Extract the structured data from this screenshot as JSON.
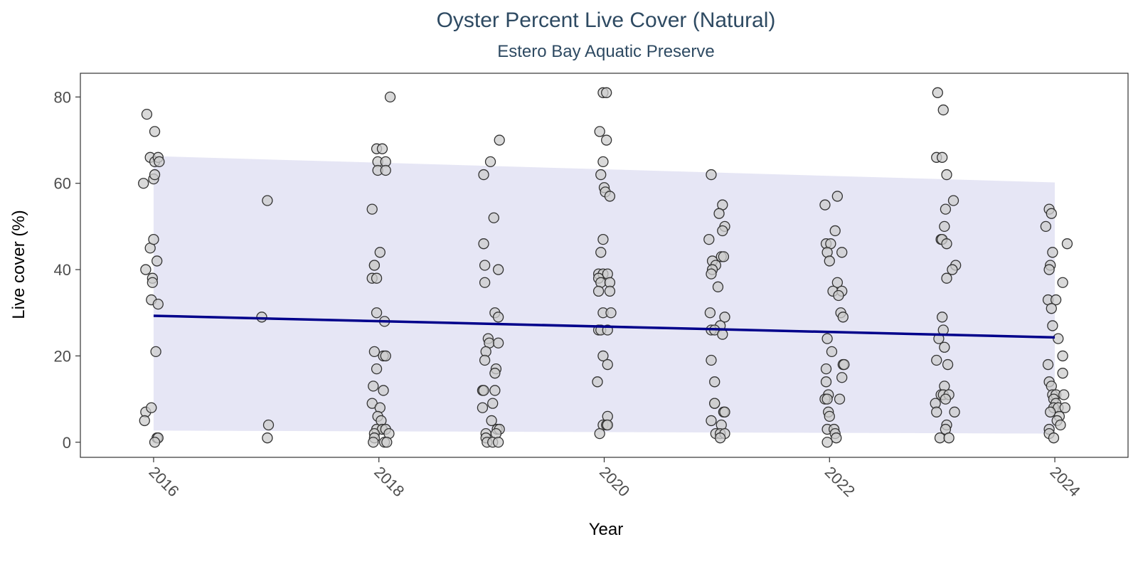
{
  "chart_data": {
    "type": "scatter",
    "title": "Oyster Percent Live Cover (Natural)",
    "subtitle": "Estero Bay Aquatic Preserve",
    "xlabel": "Year",
    "ylabel": "Live cover (%)",
    "xlim": [
      2015.35,
      2024.65
    ],
    "ylim": [
      -3.5,
      85.5
    ],
    "x_ticks": [
      2016,
      2018,
      2020,
      2022,
      2024
    ],
    "y_ticks": [
      0,
      20,
      40,
      60,
      80
    ],
    "grid": false,
    "legend": "none",
    "colors": {
      "point_fill": "#cccccc",
      "point_stroke": "#333333",
      "trend_line": "#00008b",
      "ribbon": "#e6e6f5",
      "panel_border": "#333333",
      "title": "#2e4a62"
    },
    "trend": {
      "x": [
        2016,
        2024
      ],
      "y": [
        29.3,
        24.3
      ],
      "ribbon_lower": [
        2.7,
        2.0
      ],
      "ribbon_upper": [
        66.3,
        60.2
      ]
    },
    "points": [
      {
        "x": 2015.94,
        "y": 76
      },
      {
        "x": 2015.97,
        "y": 66
      },
      {
        "x": 2016.01,
        "y": 65
      },
      {
        "x": 2016.04,
        "y": 66
      },
      {
        "x": 2016.05,
        "y": 65
      },
      {
        "x": 2016.01,
        "y": 72
      },
      {
        "x": 2015.91,
        "y": 60
      },
      {
        "x": 2016.0,
        "y": 61
      },
      {
        "x": 2016.01,
        "y": 62
      },
      {
        "x": 2015.97,
        "y": 45
      },
      {
        "x": 2016.0,
        "y": 47
      },
      {
        "x": 2016.03,
        "y": 42
      },
      {
        "x": 2015.93,
        "y": 40
      },
      {
        "x": 2015.99,
        "y": 38
      },
      {
        "x": 2015.99,
        "y": 37
      },
      {
        "x": 2015.98,
        "y": 33
      },
      {
        "x": 2016.04,
        "y": 32
      },
      {
        "x": 2016.02,
        "y": 21
      },
      {
        "x": 2015.93,
        "y": 7
      },
      {
        "x": 2015.98,
        "y": 8
      },
      {
        "x": 2015.92,
        "y": 5
      },
      {
        "x": 2016.03,
        "y": 1
      },
      {
        "x": 2016.04,
        "y": 1
      },
      {
        "x": 2016.01,
        "y": 0
      },
      {
        "x": 2017.01,
        "y": 56
      },
      {
        "x": 2016.96,
        "y": 29
      },
      {
        "x": 2017.02,
        "y": 4
      },
      {
        "x": 2017.01,
        "y": 1
      },
      {
        "x": 2018.1,
        "y": 80
      },
      {
        "x": 2017.98,
        "y": 68
      },
      {
        "x": 2018.03,
        "y": 68
      },
      {
        "x": 2017.99,
        "y": 65
      },
      {
        "x": 2018.06,
        "y": 65
      },
      {
        "x": 2017.99,
        "y": 63
      },
      {
        "x": 2018.06,
        "y": 63
      },
      {
        "x": 2017.94,
        "y": 54
      },
      {
        "x": 2018.01,
        "y": 44
      },
      {
        "x": 2017.96,
        "y": 41
      },
      {
        "x": 2017.96,
        "y": 41
      },
      {
        "x": 2017.94,
        "y": 38
      },
      {
        "x": 2017.98,
        "y": 38
      },
      {
        "x": 2017.98,
        "y": 30
      },
      {
        "x": 2018.05,
        "y": 28
      },
      {
        "x": 2017.96,
        "y": 21
      },
      {
        "x": 2018.04,
        "y": 20
      },
      {
        "x": 2018.06,
        "y": 20
      },
      {
        "x": 2017.98,
        "y": 17
      },
      {
        "x": 2017.95,
        "y": 13
      },
      {
        "x": 2018.04,
        "y": 12
      },
      {
        "x": 2017.94,
        "y": 9
      },
      {
        "x": 2018.01,
        "y": 8
      },
      {
        "x": 2017.99,
        "y": 6
      },
      {
        "x": 2018.02,
        "y": 5
      },
      {
        "x": 2017.98,
        "y": 3
      },
      {
        "x": 2018.03,
        "y": 3
      },
      {
        "x": 2018.06,
        "y": 3
      },
      {
        "x": 2017.96,
        "y": 2
      },
      {
        "x": 2018.09,
        "y": 2
      },
      {
        "x": 2017.96,
        "y": 1
      },
      {
        "x": 2017.95,
        "y": 0
      },
      {
        "x": 2018.05,
        "y": 0
      },
      {
        "x": 2018.07,
        "y": 0
      },
      {
        "x": 2019.07,
        "y": 70
      },
      {
        "x": 2018.99,
        "y": 65
      },
      {
        "x": 2018.93,
        "y": 62
      },
      {
        "x": 2019.02,
        "y": 52
      },
      {
        "x": 2018.93,
        "y": 46
      },
      {
        "x": 2018.94,
        "y": 41
      },
      {
        "x": 2019.06,
        "y": 40
      },
      {
        "x": 2018.94,
        "y": 37
      },
      {
        "x": 2019.03,
        "y": 30
      },
      {
        "x": 2019.06,
        "y": 29
      },
      {
        "x": 2018.97,
        "y": 24
      },
      {
        "x": 2018.98,
        "y": 23
      },
      {
        "x": 2019.06,
        "y": 23
      },
      {
        "x": 2018.95,
        "y": 21
      },
      {
        "x": 2018.94,
        "y": 19
      },
      {
        "x": 2019.04,
        "y": 17
      },
      {
        "x": 2019.03,
        "y": 16
      },
      {
        "x": 2018.92,
        "y": 12
      },
      {
        "x": 2018.93,
        "y": 12
      },
      {
        "x": 2019.03,
        "y": 12
      },
      {
        "x": 2019.01,
        "y": 9
      },
      {
        "x": 2018.92,
        "y": 8
      },
      {
        "x": 2019.0,
        "y": 5
      },
      {
        "x": 2019.05,
        "y": 3
      },
      {
        "x": 2019.07,
        "y": 3
      },
      {
        "x": 2018.95,
        "y": 2
      },
      {
        "x": 2019.04,
        "y": 2
      },
      {
        "x": 2018.95,
        "y": 1
      },
      {
        "x": 2018.96,
        "y": 0
      },
      {
        "x": 2019.01,
        "y": 0
      },
      {
        "x": 2019.06,
        "y": 0
      },
      {
        "x": 2019.99,
        "y": 81
      },
      {
        "x": 2020.02,
        "y": 81
      },
      {
        "x": 2019.96,
        "y": 72
      },
      {
        "x": 2020.02,
        "y": 70
      },
      {
        "x": 2019.99,
        "y": 65
      },
      {
        "x": 2019.97,
        "y": 62
      },
      {
        "x": 2020.0,
        "y": 59
      },
      {
        "x": 2020.01,
        "y": 58
      },
      {
        "x": 2020.05,
        "y": 57
      },
      {
        "x": 2019.99,
        "y": 47
      },
      {
        "x": 2019.97,
        "y": 44
      },
      {
        "x": 2019.95,
        "y": 39
      },
      {
        "x": 2019.99,
        "y": 39
      },
      {
        "x": 2020.03,
        "y": 39
      },
      {
        "x": 2019.95,
        "y": 38
      },
      {
        "x": 2019.97,
        "y": 37
      },
      {
        "x": 2020.05,
        "y": 37
      },
      {
        "x": 2019.95,
        "y": 35
      },
      {
        "x": 2020.05,
        "y": 35
      },
      {
        "x": 2019.99,
        "y": 30
      },
      {
        "x": 2020.06,
        "y": 30
      },
      {
        "x": 2019.95,
        "y": 26
      },
      {
        "x": 2019.97,
        "y": 26
      },
      {
        "x": 2020.03,
        "y": 26
      },
      {
        "x": 2019.99,
        "y": 20
      },
      {
        "x": 2020.03,
        "y": 18
      },
      {
        "x": 2019.94,
        "y": 14
      },
      {
        "x": 2020.03,
        "y": 6
      },
      {
        "x": 2019.99,
        "y": 4
      },
      {
        "x": 2020.02,
        "y": 4
      },
      {
        "x": 2020.03,
        "y": 4
      },
      {
        "x": 2019.96,
        "y": 2
      },
      {
        "x": 2020.95,
        "y": 62
      },
      {
        "x": 2021.05,
        "y": 55
      },
      {
        "x": 2021.02,
        "y": 53
      },
      {
        "x": 2021.07,
        "y": 50
      },
      {
        "x": 2021.05,
        "y": 49
      },
      {
        "x": 2020.93,
        "y": 47
      },
      {
        "x": 2021.04,
        "y": 43
      },
      {
        "x": 2021.06,
        "y": 43
      },
      {
        "x": 2020.96,
        "y": 42
      },
      {
        "x": 2020.99,
        "y": 41
      },
      {
        "x": 2020.96,
        "y": 40
      },
      {
        "x": 2020.95,
        "y": 39
      },
      {
        "x": 2021.01,
        "y": 36
      },
      {
        "x": 2020.94,
        "y": 30
      },
      {
        "x": 2021.07,
        "y": 29
      },
      {
        "x": 2021.03,
        "y": 27
      },
      {
        "x": 2020.95,
        "y": 26
      },
      {
        "x": 2020.98,
        "y": 26
      },
      {
        "x": 2021.05,
        "y": 25
      },
      {
        "x": 2020.95,
        "y": 19
      },
      {
        "x": 2020.98,
        "y": 14
      },
      {
        "x": 2020.98,
        "y": 9
      },
      {
        "x": 2020.98,
        "y": 9
      },
      {
        "x": 2021.06,
        "y": 7
      },
      {
        "x": 2021.07,
        "y": 7
      },
      {
        "x": 2020.95,
        "y": 5
      },
      {
        "x": 2021.04,
        "y": 4
      },
      {
        "x": 2020.99,
        "y": 2
      },
      {
        "x": 2021.03,
        "y": 2
      },
      {
        "x": 2021.07,
        "y": 2
      },
      {
        "x": 2021.03,
        "y": 1
      },
      {
        "x": 2022.07,
        "y": 57
      },
      {
        "x": 2021.96,
        "y": 55
      },
      {
        "x": 2022.05,
        "y": 49
      },
      {
        "x": 2021.97,
        "y": 46
      },
      {
        "x": 2022.01,
        "y": 46
      },
      {
        "x": 2021.98,
        "y": 44
      },
      {
        "x": 2022.11,
        "y": 44
      },
      {
        "x": 2022.0,
        "y": 42
      },
      {
        "x": 2022.07,
        "y": 37
      },
      {
        "x": 2022.03,
        "y": 35
      },
      {
        "x": 2022.11,
        "y": 35
      },
      {
        "x": 2022.08,
        "y": 34
      },
      {
        "x": 2022.1,
        "y": 30
      },
      {
        "x": 2022.12,
        "y": 29
      },
      {
        "x": 2021.98,
        "y": 24
      },
      {
        "x": 2022.02,
        "y": 21
      },
      {
        "x": 2022.12,
        "y": 18
      },
      {
        "x": 2022.13,
        "y": 18
      },
      {
        "x": 2021.97,
        "y": 17
      },
      {
        "x": 2022.11,
        "y": 15
      },
      {
        "x": 2021.97,
        "y": 14
      },
      {
        "x": 2021.99,
        "y": 11
      },
      {
        "x": 2021.96,
        "y": 10
      },
      {
        "x": 2021.98,
        "y": 10
      },
      {
        "x": 2022.09,
        "y": 10
      },
      {
        "x": 2021.99,
        "y": 7
      },
      {
        "x": 2022.0,
        "y": 6
      },
      {
        "x": 2021.98,
        "y": 3
      },
      {
        "x": 2022.04,
        "y": 3
      },
      {
        "x": 2022.05,
        "y": 2
      },
      {
        "x": 2022.06,
        "y": 1
      },
      {
        "x": 2021.98,
        "y": 0
      },
      {
        "x": 2022.96,
        "y": 81
      },
      {
        "x": 2023.01,
        "y": 77
      },
      {
        "x": 2022.95,
        "y": 66
      },
      {
        "x": 2023.0,
        "y": 66
      },
      {
        "x": 2023.04,
        "y": 62
      },
      {
        "x": 2023.1,
        "y": 56
      },
      {
        "x": 2023.03,
        "y": 54
      },
      {
        "x": 2023.02,
        "y": 50
      },
      {
        "x": 2022.99,
        "y": 47
      },
      {
        "x": 2023.0,
        "y": 47
      },
      {
        "x": 2023.04,
        "y": 46
      },
      {
        "x": 2023.12,
        "y": 41
      },
      {
        "x": 2023.09,
        "y": 40
      },
      {
        "x": 2023.04,
        "y": 38
      },
      {
        "x": 2023.0,
        "y": 29
      },
      {
        "x": 2023.01,
        "y": 26
      },
      {
        "x": 2022.97,
        "y": 24
      },
      {
        "x": 2023.02,
        "y": 22
      },
      {
        "x": 2022.95,
        "y": 19
      },
      {
        "x": 2023.05,
        "y": 18
      },
      {
        "x": 2023.02,
        "y": 13
      },
      {
        "x": 2022.99,
        "y": 11
      },
      {
        "x": 2023.01,
        "y": 11
      },
      {
        "x": 2023.06,
        "y": 11
      },
      {
        "x": 2023.03,
        "y": 10
      },
      {
        "x": 2022.94,
        "y": 9
      },
      {
        "x": 2022.95,
        "y": 7
      },
      {
        "x": 2023.11,
        "y": 7
      },
      {
        "x": 2023.04,
        "y": 4
      },
      {
        "x": 2023.03,
        "y": 3
      },
      {
        "x": 2022.98,
        "y": 1
      },
      {
        "x": 2023.06,
        "y": 1
      },
      {
        "x": 2023.95,
        "y": 54
      },
      {
        "x": 2023.97,
        "y": 53
      },
      {
        "x": 2023.92,
        "y": 50
      },
      {
        "x": 2024.11,
        "y": 46
      },
      {
        "x": 2023.98,
        "y": 44
      },
      {
        "x": 2023.96,
        "y": 41
      },
      {
        "x": 2023.95,
        "y": 40
      },
      {
        "x": 2024.07,
        "y": 37
      },
      {
        "x": 2023.94,
        "y": 33
      },
      {
        "x": 2024.01,
        "y": 33
      },
      {
        "x": 2023.97,
        "y": 31
      },
      {
        "x": 2023.98,
        "y": 27
      },
      {
        "x": 2024.03,
        "y": 24
      },
      {
        "x": 2024.07,
        "y": 20
      },
      {
        "x": 2023.94,
        "y": 18
      },
      {
        "x": 2024.07,
        "y": 16
      },
      {
        "x": 2023.95,
        "y": 14
      },
      {
        "x": 2023.97,
        "y": 13
      },
      {
        "x": 2023.98,
        "y": 11
      },
      {
        "x": 2024.01,
        "y": 11
      },
      {
        "x": 2024.08,
        "y": 11
      },
      {
        "x": 2023.99,
        "y": 10
      },
      {
        "x": 2024.01,
        "y": 9
      },
      {
        "x": 2023.99,
        "y": 8
      },
      {
        "x": 2024.03,
        "y": 8
      },
      {
        "x": 2024.09,
        "y": 8
      },
      {
        "x": 2023.96,
        "y": 7
      },
      {
        "x": 2024.04,
        "y": 6
      },
      {
        "x": 2024.02,
        "y": 5
      },
      {
        "x": 2024.05,
        "y": 4
      },
      {
        "x": 2023.95,
        "y": 3
      },
      {
        "x": 2023.95,
        "y": 2
      },
      {
        "x": 2023.99,
        "y": 1
      }
    ]
  }
}
